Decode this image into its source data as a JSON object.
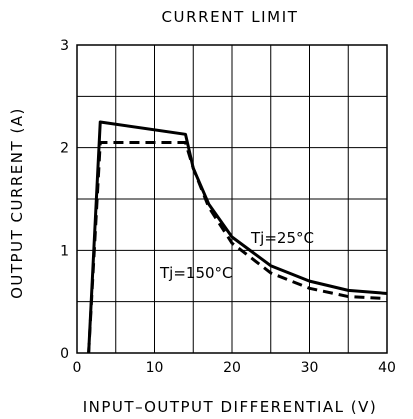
{
  "chart_data": {
    "type": "line",
    "title": "CURRENT LIMIT",
    "xlabel": "INPUT–OUTPUT DIFFERENTIAL (V)",
    "ylabel": "OUTPUT CURRENT (A)",
    "xlim": [
      0,
      40
    ],
    "ylim": [
      0,
      3
    ],
    "xticks": [
      "0",
      "10",
      "20",
      "30",
      "40"
    ],
    "yticks": [
      "0",
      "1",
      "2",
      "3"
    ],
    "grid": true,
    "series": [
      {
        "name": "Tj=25°C",
        "style": "solid",
        "x": [
          1.5,
          3.0,
          14.0,
          15.0,
          17.0,
          20.0,
          25.0,
          30.0,
          35.0,
          40.0
        ],
        "y": [
          0.0,
          2.25,
          2.13,
          1.8,
          1.45,
          1.13,
          0.85,
          0.7,
          0.61,
          0.58
        ]
      },
      {
        "name": "Tj=150°C",
        "style": "dashed",
        "x": [
          1.5,
          3.0,
          14.0,
          15.0,
          17.0,
          20.0,
          25.0,
          30.0,
          35.0,
          40.0
        ],
        "y": [
          0.0,
          2.05,
          2.05,
          1.8,
          1.42,
          1.07,
          0.78,
          0.63,
          0.55,
          0.53
        ]
      }
    ],
    "annotations": [
      "Tj=25°C",
      "Tj=150°C"
    ]
  }
}
